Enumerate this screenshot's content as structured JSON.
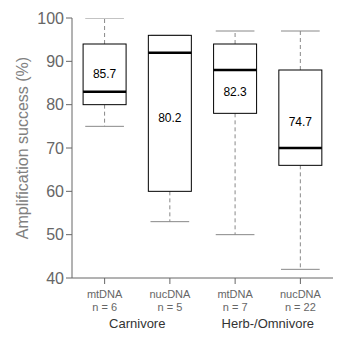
{
  "chart_data": {
    "type": "box",
    "categories": [
      "mtDNA\nn = 6",
      "nucDNA\nn = 5",
      "mtDNA\nn = 7",
      "nucDNA\nn = 22"
    ],
    "boxes": [
      {
        "whisker_low": 75,
        "q1": 80,
        "median": 83,
        "q3": 94,
        "whisker_high": 100
      },
      {
        "whisker_low": 53,
        "q1": 60,
        "median": 92,
        "q3": 96,
        "whisker_high": 96
      },
      {
        "whisker_low": 50,
        "q1": 78,
        "median": 88,
        "q3": 94,
        "whisker_high": 97
      },
      {
        "whisker_low": 42,
        "q1": 66,
        "median": 70,
        "q3": 88,
        "whisker_high": 97
      }
    ],
    "annotations": [
      {
        "text": "85.7",
        "y": 87
      },
      {
        "text": "80.2",
        "y": 77
      },
      {
        "text": "82.3",
        "y": 83
      },
      {
        "text": "74.7",
        "y": 76
      }
    ],
    "ylabel": "Amplification success (%)",
    "ylim": [
      40,
      100
    ],
    "yticks": [
      40,
      50,
      60,
      70,
      80,
      90,
      100
    ],
    "group_labels": [
      "Carnivore",
      "Herb-/Omnivore"
    ],
    "line_style": "dashed",
    "grid": false
  }
}
